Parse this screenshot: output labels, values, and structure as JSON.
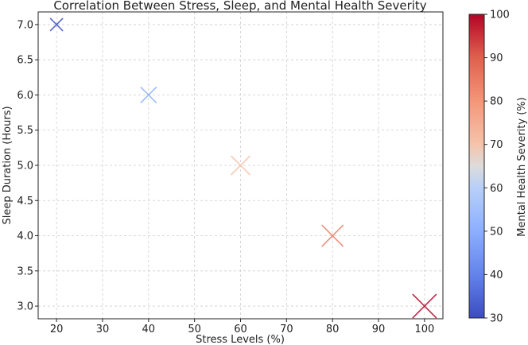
{
  "chart_data": {
    "type": "scatter",
    "title": "Correlation Between Stress, Sleep, and Mental Health Severity",
    "xlabel": "Stress Levels (%)",
    "ylabel": "Sleep Duration (Hours)",
    "marker": "x",
    "grid": true,
    "xlim": [
      16,
      104
    ],
    "ylim": [
      2.82,
      7.18
    ],
    "xticks": [
      20,
      30,
      40,
      50,
      60,
      70,
      80,
      90,
      100
    ],
    "yticks": [
      3.0,
      3.5,
      4.0,
      4.5,
      5.0,
      5.5,
      6.0,
      6.5,
      7.0
    ],
    "points": [
      {
        "x": 20,
        "y": 7.0,
        "severity": 30
      },
      {
        "x": 40,
        "y": 6.0,
        "severity": 50
      },
      {
        "x": 60,
        "y": 5.0,
        "severity": 70
      },
      {
        "x": 80,
        "y": 4.0,
        "severity": 85
      },
      {
        "x": 100,
        "y": 3.0,
        "severity": 100
      }
    ],
    "colorbar": {
      "label": "Mental Health Severity (%)",
      "colormap": "coolwarm",
      "range": [
        30,
        100
      ],
      "ticks": [
        30,
        40,
        50,
        60,
        70,
        80,
        90,
        100
      ]
    }
  }
}
